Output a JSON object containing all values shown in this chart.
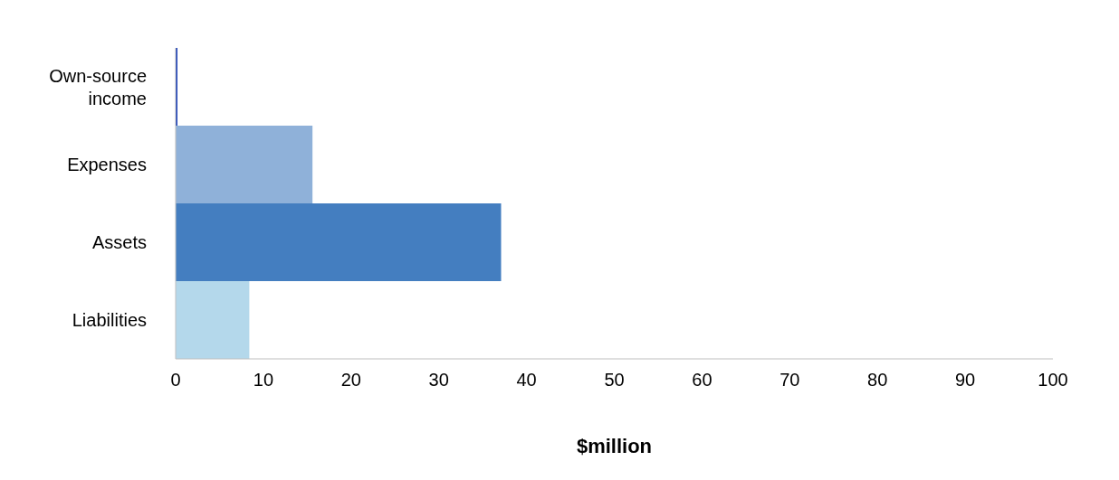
{
  "chart_data": {
    "type": "bar",
    "orientation": "horizontal",
    "xlabel": "$million",
    "categories": [
      "Own-source income",
      "Expenses",
      "Assets",
      "Liabilities"
    ],
    "values": [
      0.2,
      15.6,
      37.1,
      8.4
    ],
    "colors": [
      "#0a32b4",
      "#8fb1d9",
      "#447ec0",
      "#b4d8eb"
    ],
    "xlim": [
      0,
      100
    ],
    "xticks": [
      0,
      10,
      20,
      30,
      40,
      50,
      60,
      70,
      80,
      90,
      100
    ]
  }
}
